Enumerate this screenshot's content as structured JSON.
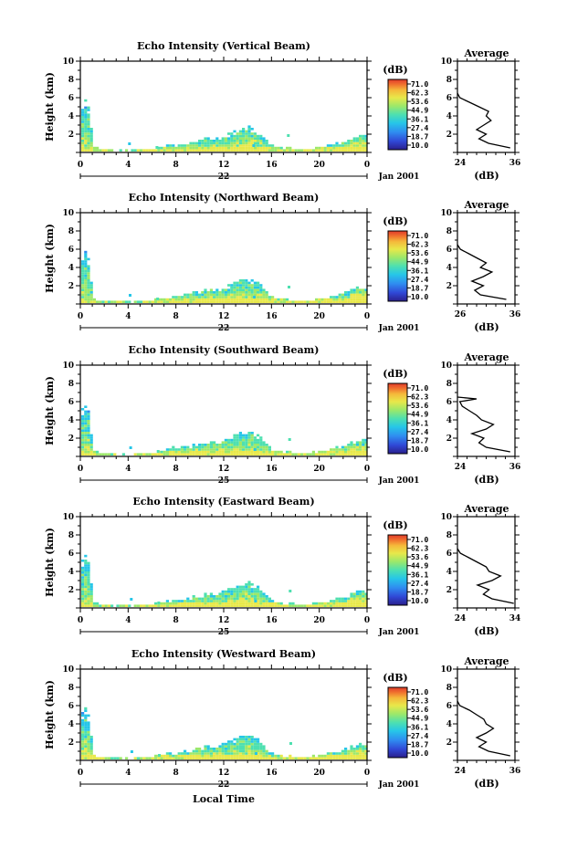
{
  "chart_data": [
    {
      "type": "heatmap",
      "title": "Echo Intensity (Vertical Beam)",
      "ylabel": "Height (km)",
      "ylim": [
        0,
        10
      ],
      "yticks": [
        "2",
        "4",
        "6",
        "8",
        "10"
      ],
      "xlim": [
        0,
        24
      ],
      "xticks": [
        "0",
        "4",
        "8",
        "12",
        "16",
        "20",
        "0"
      ],
      "date_label": "22",
      "month_label": "Jan 2001",
      "colorbar_unit": "(dB)",
      "colorbar_ticks": [
        "71.0",
        "62.3",
        "53.6",
        "44.9",
        "36.1",
        "27.4",
        "18.7",
        "10.0"
      ],
      "average": {
        "title": "Average",
        "xlabel": "(dB)",
        "xticks": [
          "24",
          "36"
        ],
        "xlim": [
          24,
          36
        ],
        "ylim": [
          0,
          10
        ],
        "yticks": [
          "2",
          "4",
          "6",
          "8",
          "10"
        ]
      }
    },
    {
      "type": "heatmap",
      "title": "Echo Intensity (Northward Beam)",
      "ylabel": "Height (km)",
      "ylim": [
        0,
        10
      ],
      "yticks": [
        "2",
        "4",
        "6",
        "8",
        "10"
      ],
      "xlim": [
        0,
        24
      ],
      "xticks": [
        "0",
        "4",
        "8",
        "12",
        "16",
        "20",
        "0"
      ],
      "date_label": "22",
      "month_label": "Jan 2001",
      "colorbar_unit": "(dB)",
      "colorbar_ticks": [
        "71.0",
        "62.3",
        "53.6",
        "44.9",
        "36.1",
        "27.4",
        "18.7",
        "10.0"
      ],
      "average": {
        "title": "Average",
        "xlabel": "(dB)",
        "xticks": [
          "26",
          "36"
        ],
        "xlim": [
          26,
          36
        ],
        "ylim": [
          0,
          10
        ],
        "yticks": [
          "2",
          "4",
          "6",
          "8",
          "10"
        ]
      }
    },
    {
      "type": "heatmap",
      "title": "Echo Intensity (Southward Beam)",
      "ylabel": "Height (km)",
      "ylim": [
        0,
        10
      ],
      "yticks": [
        "2",
        "4",
        "6",
        "8",
        "10"
      ],
      "xlim": [
        0,
        24
      ],
      "xticks": [
        "0",
        "4",
        "8",
        "12",
        "16",
        "20",
        "0"
      ],
      "date_label": "25",
      "month_label": "Jan 2001",
      "colorbar_unit": "(dB)",
      "colorbar_ticks": [
        "71.0",
        "62.3",
        "53.6",
        "44.9",
        "36.1",
        "27.4",
        "18.7",
        "10.0"
      ],
      "average": {
        "title": "Average",
        "xlabel": "(dB)",
        "xticks": [
          "24",
          "36"
        ],
        "xlim": [
          24,
          36
        ],
        "ylim": [
          0,
          10
        ],
        "yticks": [
          "2",
          "4",
          "6",
          "8",
          "10"
        ]
      }
    },
    {
      "type": "heatmap",
      "title": "Echo Intensity (Eastward Beam)",
      "ylabel": "Height (km)",
      "ylim": [
        0,
        10
      ],
      "yticks": [
        "2",
        "4",
        "6",
        "8",
        "10"
      ],
      "xlim": [
        0,
        24
      ],
      "xticks": [
        "0",
        "4",
        "8",
        "12",
        "16",
        "20",
        "0"
      ],
      "date_label": "25",
      "month_label": "Jan 2001",
      "colorbar_unit": "(dB)",
      "colorbar_ticks": [
        "71.0",
        "62.3",
        "53.6",
        "44.9",
        "36.1",
        "27.4",
        "18.7",
        "10.0"
      ],
      "average": {
        "title": "Average",
        "xlabel": "(dB)",
        "xticks": [
          "24",
          "34"
        ],
        "xlim": [
          24,
          34
        ],
        "ylim": [
          0,
          10
        ],
        "yticks": [
          "2",
          "4",
          "6",
          "8",
          "10"
        ]
      }
    },
    {
      "type": "heatmap",
      "title": "Echo Intensity (Westward Beam)",
      "ylabel": "Height (km)",
      "ylim": [
        0,
        10
      ],
      "yticks": [
        "2",
        "4",
        "6",
        "8",
        "10"
      ],
      "xlim": [
        0,
        24
      ],
      "xticks": [
        "0",
        "4",
        "8",
        "12",
        "16",
        "20",
        "0"
      ],
      "date_label": "22",
      "month_label": "Jan 2001",
      "colorbar_unit": "(dB)",
      "colorbar_ticks": [
        "71.0",
        "62.3",
        "53.6",
        "44.9",
        "36.1",
        "27.4",
        "18.7",
        "10.0"
      ],
      "xlabel": "Local Time",
      "average": {
        "title": "Average",
        "xlabel": "(dB)",
        "xticks": [
          "24",
          "36"
        ],
        "xlim": [
          24,
          36
        ],
        "ylim": [
          0,
          10
        ],
        "yticks": [
          "2",
          "4",
          "6",
          "8",
          "10"
        ]
      }
    }
  ],
  "echo_tops": {
    "description_times": [
      0,
      0.3,
      0.6,
      1,
      1.5,
      2,
      3,
      4,
      5,
      6,
      7,
      8,
      9,
      10,
      11,
      12,
      12.5,
      13,
      13.5,
      14,
      14.5,
      15,
      15.5,
      16,
      17,
      18,
      19,
      20,
      21,
      22,
      22.5,
      23,
      23.5,
      24
    ],
    "tops_km": [
      5.4,
      6.0,
      5.2,
      0.8,
      0.5,
      0.5,
      0.4,
      0.4,
      0.5,
      0.6,
      0.9,
      1.0,
      1.3,
      1.6,
      1.8,
      2.0,
      2.3,
      2.6,
      2.9,
      3.0,
      2.7,
      2.2,
      1.4,
      0.9,
      0.7,
      0.6,
      0.6,
      0.7,
      1.1,
      1.4,
      1.6,
      2.0,
      2.2,
      1.8
    ]
  },
  "average_profiles": [
    {
      "height_km": [
        0.5,
        1.0,
        1.5,
        2.0,
        2.5,
        3.0,
        3.5,
        4.0,
        4.5,
        5.0,
        5.5,
        6.0,
        6.5
      ],
      "db": [
        35.0,
        30.5,
        28.5,
        30.0,
        28.0,
        29.5,
        31.0,
        30.0,
        30.5,
        28.5,
        26.5,
        24.5,
        24.0
      ]
    },
    {
      "height_km": [
        0.5,
        1.0,
        1.5,
        2.0,
        2.5,
        3.0,
        3.5,
        4.0,
        4.5,
        5.0,
        5.5,
        6.0,
        6.5
      ],
      "db": [
        34.5,
        30.0,
        29.0,
        30.5,
        28.5,
        30.5,
        32.0,
        30.0,
        31.0,
        29.5,
        28.0,
        26.5,
        26.0
      ]
    },
    {
      "height_km": [
        0.5,
        1.0,
        1.5,
        2.0,
        2.5,
        3.0,
        3.5,
        4.0,
        4.5,
        5.0,
        5.5,
        6.0,
        6.3,
        6.5
      ],
      "db": [
        35.0,
        30.0,
        28.5,
        29.5,
        27.0,
        30.0,
        31.5,
        29.0,
        28.0,
        26.5,
        25.0,
        24.5,
        28.0,
        24.0
      ]
    },
    {
      "height_km": [
        0.5,
        1.0,
        1.5,
        2.0,
        2.5,
        3.0,
        3.5,
        4.0,
        4.5,
        5.0,
        5.5,
        6.0,
        6.5
      ],
      "db": [
        33.8,
        30.0,
        28.5,
        29.5,
        27.5,
        30.0,
        31.5,
        29.5,
        29.0,
        27.5,
        26.0,
        24.5,
        24.0
      ]
    },
    {
      "height_km": [
        0.5,
        1.0,
        1.5,
        2.0,
        2.5,
        3.0,
        3.5,
        4.0,
        4.5,
        5.0,
        5.5,
        6.0,
        6.5
      ],
      "db": [
        35.0,
        30.5,
        28.5,
        30.0,
        28.0,
        30.0,
        31.5,
        30.0,
        29.5,
        28.0,
        26.5,
        24.5,
        24.0
      ]
    }
  ],
  "colors": {
    "axis": "#000000",
    "background": "#ffffff",
    "colormap": [
      "#2a1f8c",
      "#3048d6",
      "#2f8df0",
      "#26c6e8",
      "#4ee0b0",
      "#9ce86a",
      "#e8e84a",
      "#f5b83a",
      "#f0702e",
      "#e03a2a"
    ]
  }
}
